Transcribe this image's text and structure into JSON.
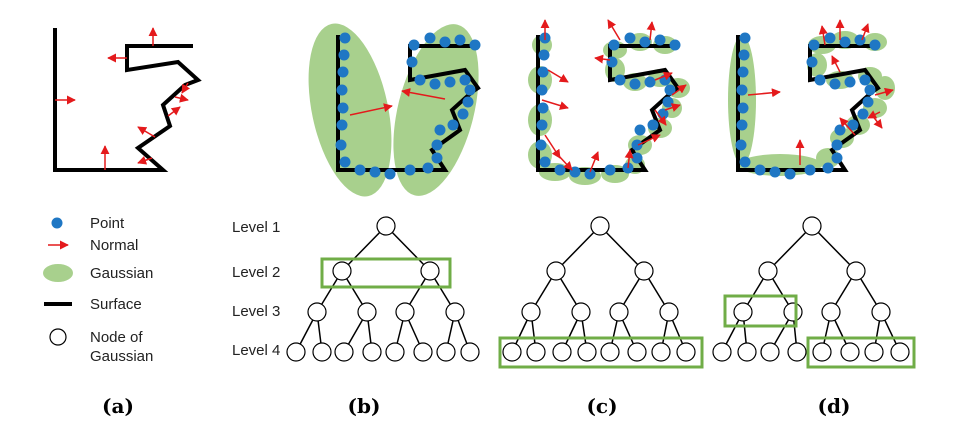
{
  "legend": {
    "point": "Point",
    "normal": "Normal",
    "gaussian": "Gaussian",
    "surface": "Surface",
    "node_line1": "Node of",
    "node_line2": "Gaussian"
  },
  "levels": [
    "Level 1",
    "Level 2",
    "Level 3",
    "Level 4"
  ],
  "panels": [
    "(a)",
    "(b)",
    "(c)",
    "(d)"
  ],
  "colors": {
    "point": "#1f77c4",
    "normal": "#e41a1c",
    "gaussian": "#a8d08d",
    "surface": "#000000",
    "highlight": "#70ad47"
  }
}
